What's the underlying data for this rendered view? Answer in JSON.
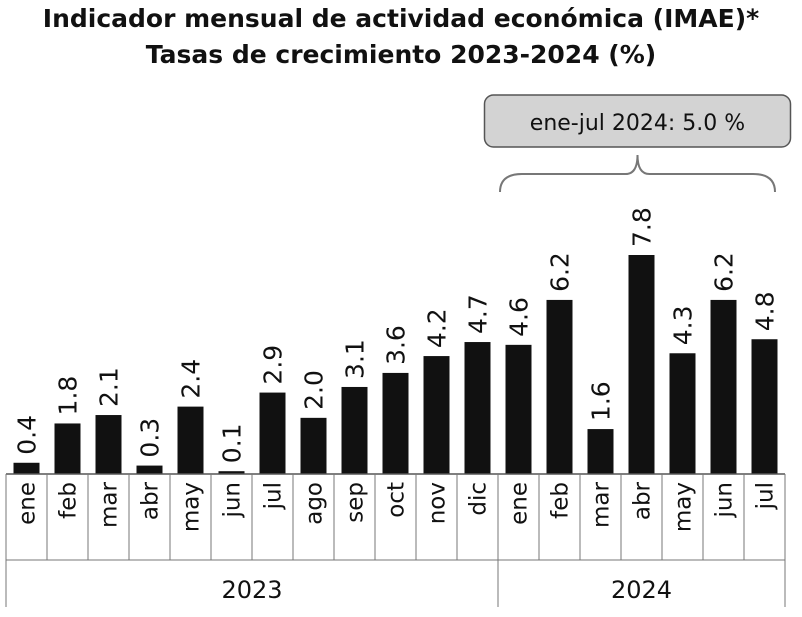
{
  "chart_data": {
    "type": "bar",
    "title": "Indicador mensual de actividad económica (IMAE)*",
    "subtitle": "Tasas de crecimiento 2023-2024 (%)",
    "categories": [
      "ene",
      "feb",
      "mar",
      "abr",
      "may",
      "jun",
      "jul",
      "ago",
      "sep",
      "oct",
      "nov",
      "dic",
      "ene",
      "feb",
      "mar",
      "abr",
      "may",
      "jun",
      "jul"
    ],
    "values": [
      0.4,
      1.8,
      2.1,
      0.3,
      2.4,
      0.1,
      2.9,
      2.0,
      3.1,
      3.6,
      4.2,
      4.7,
      4.6,
      6.2,
      1.6,
      7.8,
      4.3,
      6.2,
      4.8
    ],
    "value_labels": [
      "0.4",
      "1.8",
      "2.1",
      "0.3",
      "2.4",
      "0.1",
      "2.9",
      "2.0",
      "3.1",
      "3.6",
      "4.2",
      "4.7",
      "4.6",
      "6.2",
      "1.6",
      "7.8",
      "4.3",
      "6.2",
      "4.8"
    ],
    "groups": [
      {
        "label": "2023",
        "count": 12
      },
      {
        "label": "2024",
        "count": 7
      }
    ],
    "annotation": {
      "text": "ene-jul 2024: 5.0 %",
      "applies_to": "2024"
    },
    "ylim": [
      0,
      8
    ],
    "xlabel": "",
    "ylabel": "",
    "grid": false,
    "bar_color": "#111111",
    "annotation_fill": "#d3d3d3"
  }
}
